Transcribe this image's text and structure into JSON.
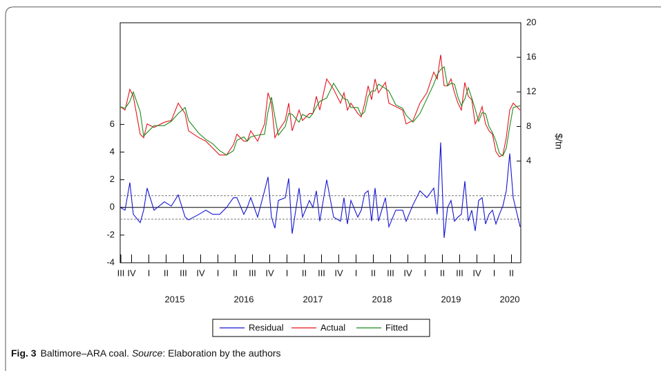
{
  "chart_data": {
    "type": "line",
    "right_axis_label": "$/tn",
    "x": [
      2014.71,
      2014.78,
      2014.85,
      2014.9,
      2015.0,
      2015.05,
      2015.1,
      2015.2,
      2015.35,
      2015.45,
      2015.55,
      2015.65,
      2015.7,
      2015.85,
      2015.95,
      2016.05,
      2016.15,
      2016.25,
      2016.35,
      2016.4,
      2016.5,
      2016.55,
      2016.6,
      2016.7,
      2016.8,
      2016.85,
      2016.9,
      2016.95,
      2017.0,
      2017.1,
      2017.15,
      2017.2,
      2017.3,
      2017.35,
      2017.45,
      2017.5,
      2017.55,
      2017.6,
      2017.7,
      2017.8,
      2017.9,
      2017.95,
      2018.0,
      2018.05,
      2018.15,
      2018.2,
      2018.25,
      2018.3,
      2018.35,
      2018.4,
      2018.45,
      2018.55,
      2018.6,
      2018.7,
      2018.8,
      2018.85,
      2018.95,
      2019.05,
      2019.15,
      2019.25,
      2019.3,
      2019.35,
      2019.4,
      2019.45,
      2019.5,
      2019.55,
      2019.6,
      2019.65,
      2019.7,
      2019.75,
      2019.8,
      2019.85,
      2019.9,
      2019.95,
      2020.0,
      2020.05,
      2020.1,
      2020.15,
      2020.2,
      2020.25,
      2020.3,
      2020.35,
      2020.4,
      2020.5
    ],
    "series": [
      {
        "name": "Residual",
        "color": "#1414d2",
        "axis": "y",
        "values": [
          0,
          -0.2,
          1.8,
          -0.5,
          -1.1,
          -0.2,
          1.4,
          -0.2,
          0.4,
          0.1,
          0.9,
          -0.7,
          -0.9,
          -0.5,
          -0.2,
          -0.5,
          -0.5,
          0,
          0.7,
          0.7,
          -0.5,
          0,
          0.7,
          -0.7,
          1.2,
          2.2,
          -0.7,
          -1.5,
          0.5,
          0.7,
          2.1,
          -1.9,
          1.4,
          -0.7,
          0.5,
          0,
          1.2,
          -1.0,
          2.0,
          -0.7,
          -1.0,
          0.7,
          -1.2,
          0.5,
          -0.7,
          -0.2,
          1.0,
          1.2,
          -1.0,
          1.4,
          -1.0,
          0.7,
          -1.4,
          -0.2,
          -0.2,
          -1.0,
          0.2,
          1.2,
          0.7,
          1.4,
          -0.5,
          4.7,
          -2.2,
          0,
          0.5,
          -1.0,
          -0.7,
          -0.5,
          1.9,
          -1.0,
          -0.2,
          -1.7,
          0.5,
          0.7,
          -1.2,
          -0.5,
          -0.2,
          -1.2,
          -0.5,
          0.1,
          1.2,
          3.9,
          0.7,
          -1.4
        ]
      },
      {
        "name": "Actual",
        "color": "#e3141c",
        "axis": "y2",
        "values": [
          10.3,
          9.9,
          12.3,
          11.5,
          7.1,
          6.7,
          8.3,
          7.9,
          8.5,
          8.7,
          10.7,
          9.5,
          7.5,
          6.7,
          6.3,
          5.5,
          4.7,
          4.7,
          5.9,
          7.1,
          6.3,
          6.3,
          7.5,
          6.3,
          8.3,
          11.9,
          10.7,
          6.7,
          7.5,
          8.7,
          10.7,
          7.5,
          9.9,
          8.7,
          9.5,
          9.5,
          11.5,
          9.9,
          13.5,
          12.3,
          10.7,
          11.9,
          9.9,
          10.7,
          9.5,
          9.1,
          10.7,
          12.7,
          11.1,
          13.5,
          11.9,
          13.1,
          10.7,
          10.3,
          9.9,
          8.3,
          8.7,
          10.7,
          11.9,
          14.3,
          13.5,
          16.3,
          12.7,
          12.7,
          13.5,
          11.9,
          10.7,
          9.9,
          13.1,
          11.5,
          11.1,
          8.3,
          9.1,
          10.3,
          8.3,
          7.5,
          7.1,
          5.1,
          4.5,
          4.7,
          6.7,
          9.9,
          10.7,
          9.9
        ]
      },
      {
        "name": "Fitted",
        "color": "#1a8a1a",
        "axis": "y2",
        "values": [
          10.3,
          10.1,
          10.9,
          12.0,
          9.7,
          6.9,
          7.3,
          8.1,
          8.1,
          8.6,
          9.5,
          10.2,
          8.7,
          7.2,
          6.5,
          6.0,
          5.2,
          4.7,
          5.2,
          6.4,
          6.8,
          6.3,
          6.8,
          7.0,
          7.1,
          9.7,
          11.4,
          9.1,
          7.0,
          8.0,
          9.5,
          9.4,
          8.5,
          9.4,
          9.0,
          9.5,
          10.3,
          10.9,
          11.3,
          13.0,
          11.7,
          11.2,
          11.1,
          10.2,
          10.2,
          9.3,
          9.7,
          11.5,
          12.1,
          12.1,
          12.9,
          12.4,
          12.1,
          10.5,
          10.1,
          9.3,
          8.5,
          9.5,
          11.2,
          12.9,
          14.0,
          14.6,
          14.9,
          12.7,
          13.0,
          12.9,
          11.4,
          10.4,
          11.2,
          12.5,
          11.3,
          10.0,
          8.6,
          9.6,
          9.5,
          8.0,
          7.3,
          6.3,
          4.9,
          4.6,
          5.5,
          8.0,
          10.2,
          10.4
        ]
      }
    ],
    "xlim": [
      2014.71,
      2020.51
    ],
    "xticks": [
      {
        "value": 2014.72,
        "label": "III"
      },
      {
        "value": 2014.875,
        "label": "IV"
      },
      {
        "value": 2015.125,
        "label": "I"
      },
      {
        "value": 2015.375,
        "label": "II"
      },
      {
        "value": 2015.625,
        "label": "III"
      },
      {
        "value": 2015.875,
        "label": "IV"
      },
      {
        "value": 2016.125,
        "label": "I"
      },
      {
        "value": 2016.375,
        "label": "II"
      },
      {
        "value": 2016.625,
        "label": "III"
      },
      {
        "value": 2016.875,
        "label": "IV"
      },
      {
        "value": 2017.125,
        "label": "I"
      },
      {
        "value": 2017.375,
        "label": "II"
      },
      {
        "value": 2017.625,
        "label": "III"
      },
      {
        "value": 2017.875,
        "label": "IV"
      },
      {
        "value": 2018.125,
        "label": "I"
      },
      {
        "value": 2018.375,
        "label": "II"
      },
      {
        "value": 2018.625,
        "label": "III"
      },
      {
        "value": 2018.875,
        "label": "IV"
      },
      {
        "value": 2019.125,
        "label": "I"
      },
      {
        "value": 2019.375,
        "label": "II"
      },
      {
        "value": 2019.625,
        "label": "III"
      },
      {
        "value": 2019.875,
        "label": "IV"
      },
      {
        "value": 2020.125,
        "label": "I"
      },
      {
        "value": 2020.375,
        "label": "II"
      }
    ],
    "year_labels": [
      {
        "value": 2015.5,
        "label": "2015"
      },
      {
        "value": 2016.5,
        "label": "2016"
      },
      {
        "value": 2017.5,
        "label": "2017"
      },
      {
        "value": 2018.5,
        "label": "2018"
      },
      {
        "value": 2019.5,
        "label": "2019"
      },
      {
        "value": 2020.35,
        "label": "2020"
      }
    ],
    "ylim": [
      -4,
      13.35
    ],
    "yticks": [
      -4,
      -2,
      0,
      2,
      4,
      6
    ],
    "y2lim": [
      -7.76,
      20
    ],
    "y2ticks": [
      4,
      8,
      12,
      16,
      20
    ],
    "reference_lines": [
      {
        "value": 0,
        "style": "solid"
      },
      {
        "value": 0.85,
        "style": "dashed"
      },
      {
        "value": -0.85,
        "style": "dashed"
      }
    ]
  },
  "caption": {
    "label": "Fig. 3",
    "text": "Baltimore–ARA coal.",
    "source": "Source",
    "rest": ": Elaboration by the authors"
  }
}
